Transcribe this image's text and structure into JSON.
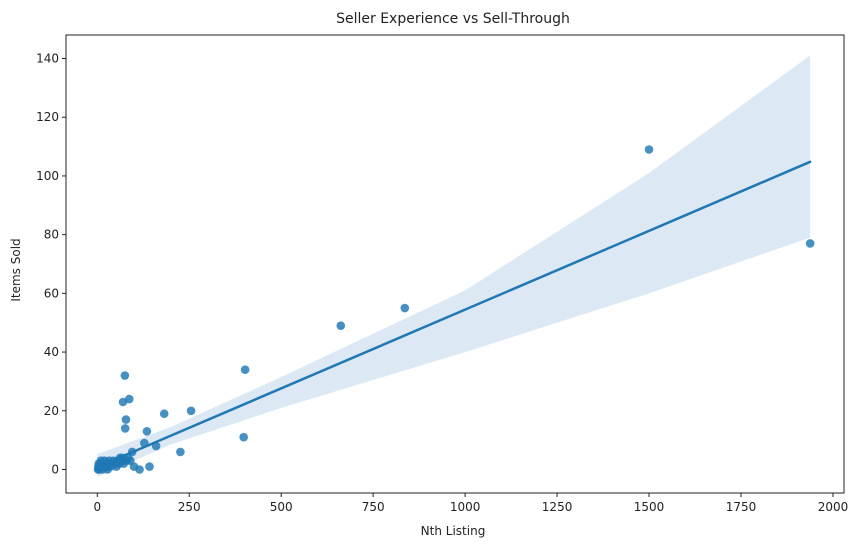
{
  "chart_data": {
    "type": "scatter",
    "title": "Seller Experience vs Sell-Through",
    "xlabel": "Nth Listing",
    "ylabel": "Items Sold",
    "xlim": [
      -85,
      2030
    ],
    "ylim": [
      -8,
      148
    ],
    "xticks": [
      0,
      250,
      500,
      750,
      1000,
      1250,
      1500,
      1750,
      2000
    ],
    "yticks": [
      0,
      20,
      40,
      60,
      80,
      100,
      120,
      140
    ],
    "grid": false,
    "legend": "none",
    "colors": {
      "point": "#1f77b4",
      "line": "#1f77b4",
      "band": "#dce8f3"
    },
    "series": [
      {
        "points": [
          {
            "x": 2,
            "y": 0
          },
          {
            "x": 3,
            "y": 1
          },
          {
            "x": 4,
            "y": 2
          },
          {
            "x": 5,
            "y": 0
          },
          {
            "x": 6,
            "y": 1
          },
          {
            "x": 8,
            "y": 2
          },
          {
            "x": 10,
            "y": 3
          },
          {
            "x": 12,
            "y": 1
          },
          {
            "x": 14,
            "y": 0
          },
          {
            "x": 16,
            "y": 2
          },
          {
            "x": 18,
            "y": 1
          },
          {
            "x": 20,
            "y": 3
          },
          {
            "x": 22,
            "y": 2
          },
          {
            "x": 25,
            "y": 1
          },
          {
            "x": 28,
            "y": 0
          },
          {
            "x": 30,
            "y": 2
          },
          {
            "x": 33,
            "y": 3
          },
          {
            "x": 36,
            "y": 1
          },
          {
            "x": 40,
            "y": 2
          },
          {
            "x": 44,
            "y": 3
          },
          {
            "x": 48,
            "y": 2
          },
          {
            "x": 52,
            "y": 1
          },
          {
            "x": 56,
            "y": 3
          },
          {
            "x": 60,
            "y": 2
          },
          {
            "x": 62,
            "y": 4
          },
          {
            "x": 66,
            "y": 3
          },
          {
            "x": 68,
            "y": 4
          },
          {
            "x": 70,
            "y": 23
          },
          {
            "x": 72,
            "y": 2
          },
          {
            "x": 75,
            "y": 32
          },
          {
            "x": 76,
            "y": 14
          },
          {
            "x": 78,
            "y": 17
          },
          {
            "x": 80,
            "y": 3
          },
          {
            "x": 84,
            "y": 4
          },
          {
            "x": 87,
            "y": 24
          },
          {
            "x": 90,
            "y": 3
          },
          {
            "x": 95,
            "y": 6
          },
          {
            "x": 100,
            "y": 1
          },
          {
            "x": 115,
            "y": 0
          },
          {
            "x": 128,
            "y": 9
          },
          {
            "x": 135,
            "y": 13
          },
          {
            "x": 142,
            "y": 1
          },
          {
            "x": 160,
            "y": 8
          },
          {
            "x": 182,
            "y": 19
          },
          {
            "x": 226,
            "y": 6
          },
          {
            "x": 255,
            "y": 20
          },
          {
            "x": 398,
            "y": 11
          },
          {
            "x": 402,
            "y": 34
          },
          {
            "x": 662,
            "y": 49
          },
          {
            "x": 836,
            "y": 55
          },
          {
            "x": 1500,
            "y": 109
          },
          {
            "x": 1938,
            "y": 77
          }
        ]
      }
    ],
    "regression": {
      "x": [
        0,
        1938
      ],
      "y": [
        0.8,
        104.8
      ],
      "band": [
        {
          "x": 0,
          "lower": -2.5,
          "upper": 5.2
        },
        {
          "x": 200,
          "lower": 8.5,
          "upper": 14.5
        },
        {
          "x": 500,
          "lower": 21.0,
          "upper": 31.5
        },
        {
          "x": 1000,
          "lower": 40.0,
          "upper": 61.0
        },
        {
          "x": 1500,
          "lower": 60.0,
          "upper": 101.0
        },
        {
          "x": 1938,
          "lower": 79.0,
          "upper": 141.0
        }
      ]
    }
  }
}
